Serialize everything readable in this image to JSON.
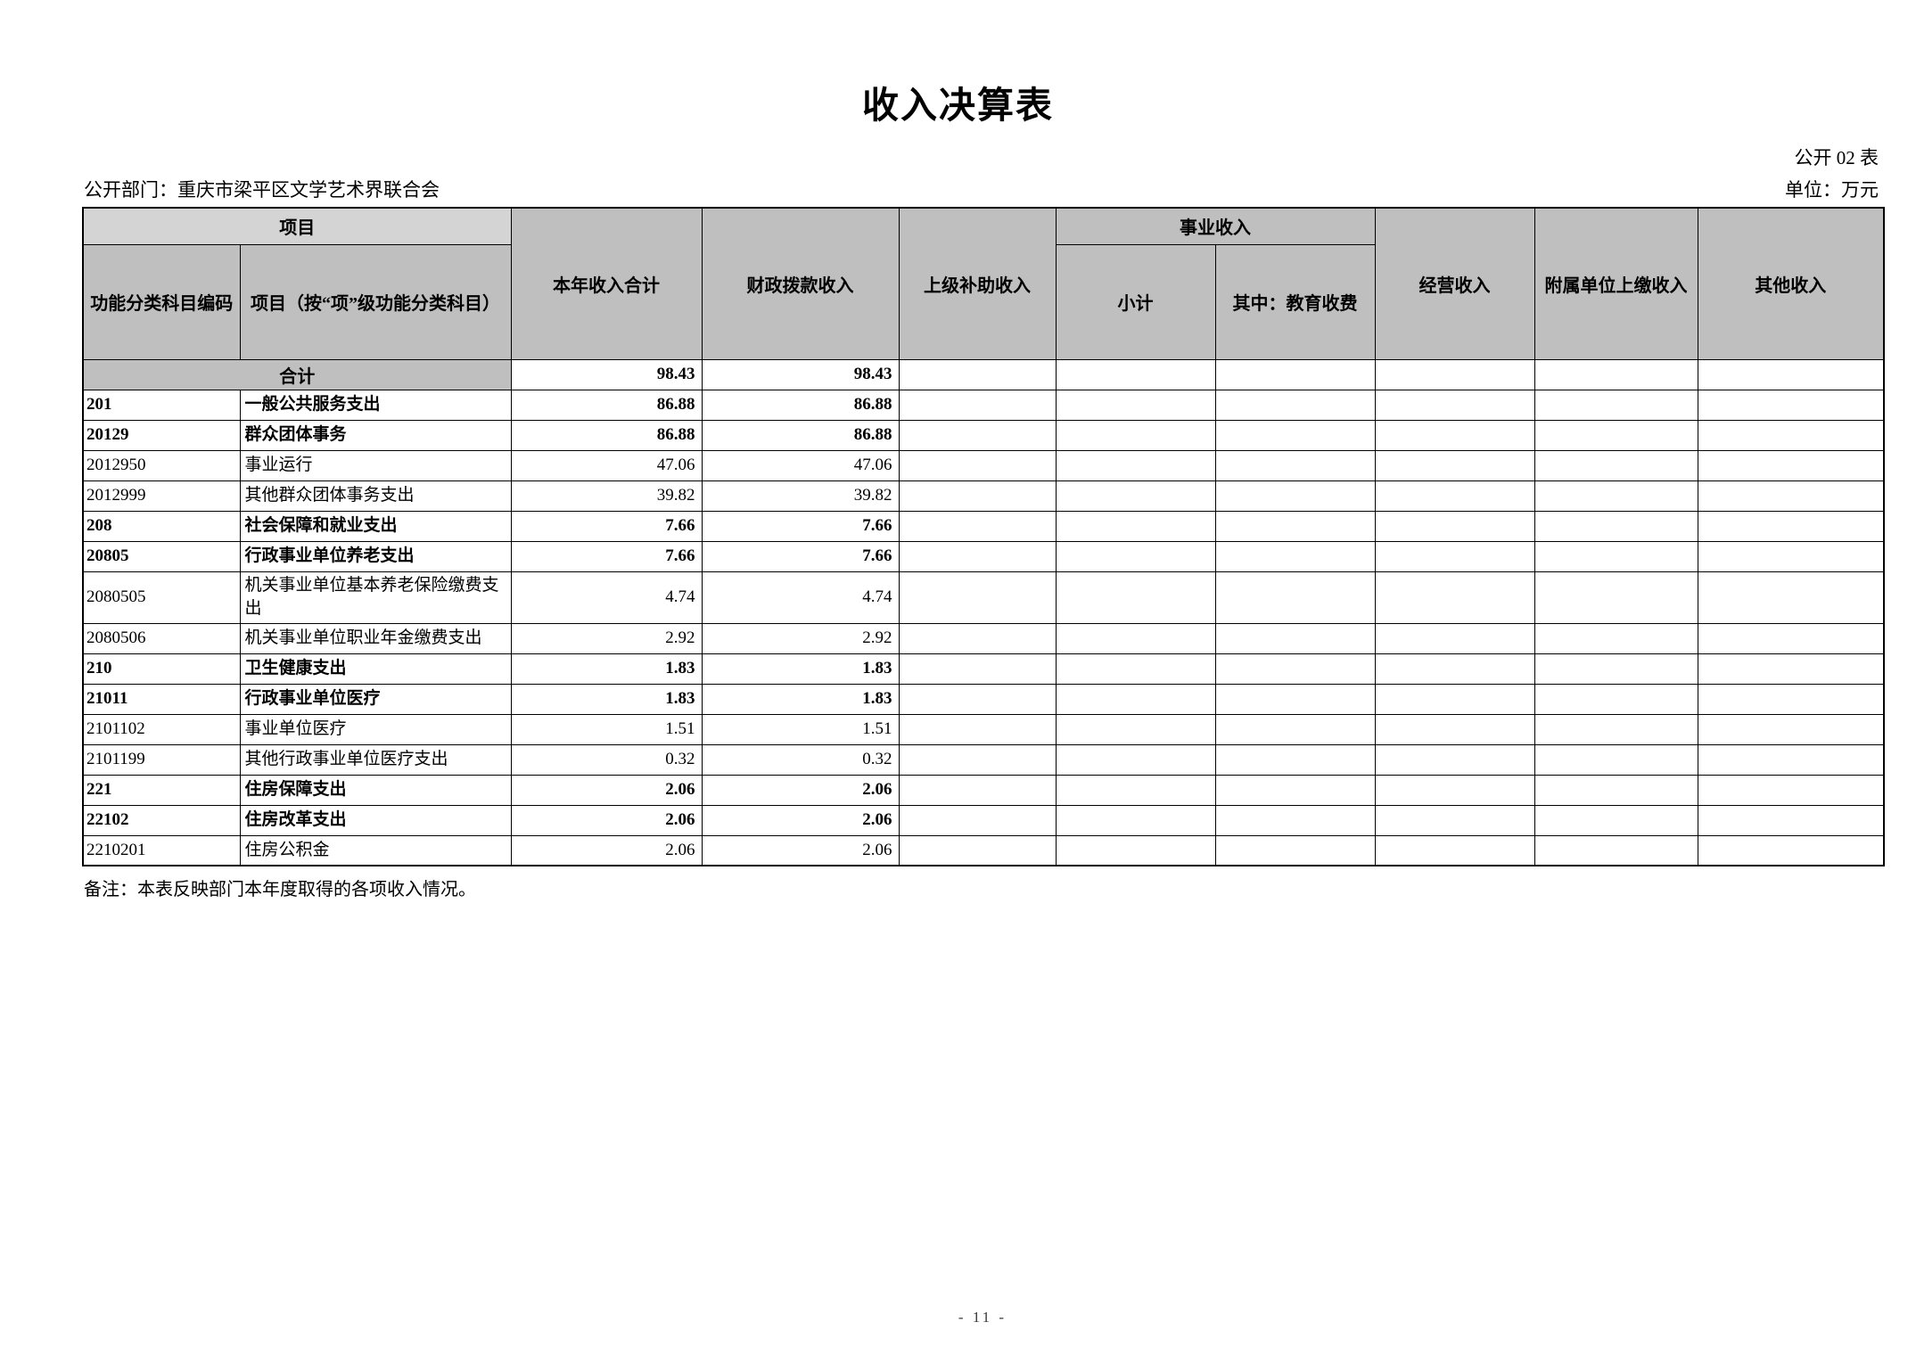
{
  "page": {
    "title": "收入决算表",
    "table_code": "公开 02 表",
    "department": "公开部门：重庆市梁平区文学艺术界联合会",
    "unit": "单位：万元",
    "note": "备注：本表反映部门本年度取得的各项收入情况。",
    "page_number": "- 11 -"
  },
  "colors": {
    "header_bg": "#bfbfbf",
    "project_group_bg": "#d4d4d4",
    "total_row_bg": "#bfbfbf",
    "border": "#000000"
  },
  "table": {
    "header": {
      "group_project": "项目",
      "col_code": "功能分类科目编码",
      "col_project": "项目（按“项”级功能分类科目）",
      "col_annual_total": "本年收入合计",
      "col_fiscal": "财政拨款收入",
      "col_superior": "上级补助收入",
      "group_business": "事业收入",
      "col_subtotal": "小计",
      "col_education": "其中：教育收费",
      "col_operating": "经营收入",
      "col_affiliated": "附属单位上缴收入",
      "col_other": "其他收入"
    },
    "total_row": {
      "label": "合计",
      "annual_total": "98.43",
      "fiscal": "98.43",
      "superior": "",
      "subtotal": "",
      "education": "",
      "operating": "",
      "affiliated": "",
      "other": ""
    },
    "rows": [
      {
        "code": "201",
        "name": "一般公共服务支出",
        "annual_total": "86.88",
        "fiscal": "86.88",
        "superior": "",
        "subtotal": "",
        "education": "",
        "operating": "",
        "affiliated": "",
        "other": "",
        "bold": true
      },
      {
        "code": "20129",
        "name": "群众团体事务",
        "annual_total": "86.88",
        "fiscal": "86.88",
        "superior": "",
        "subtotal": "",
        "education": "",
        "operating": "",
        "affiliated": "",
        "other": "",
        "bold": true
      },
      {
        "code": "2012950",
        "name": "事业运行",
        "annual_total": "47.06",
        "fiscal": "47.06",
        "superior": "",
        "subtotal": "",
        "education": "",
        "operating": "",
        "affiliated": "",
        "other": "",
        "bold": false
      },
      {
        "code": "2012999",
        "name": "其他群众团体事务支出",
        "annual_total": "39.82",
        "fiscal": "39.82",
        "superior": "",
        "subtotal": "",
        "education": "",
        "operating": "",
        "affiliated": "",
        "other": "",
        "bold": false
      },
      {
        "code": "208",
        "name": "社会保障和就业支出",
        "annual_total": "7.66",
        "fiscal": "7.66",
        "superior": "",
        "subtotal": "",
        "education": "",
        "operating": "",
        "affiliated": "",
        "other": "",
        "bold": true
      },
      {
        "code": "20805",
        "name": "行政事业单位养老支出",
        "annual_total": "7.66",
        "fiscal": "7.66",
        "superior": "",
        "subtotal": "",
        "education": "",
        "operating": "",
        "affiliated": "",
        "other": "",
        "bold": true
      },
      {
        "code": "2080505",
        "name": "机关事业单位基本养老保险缴费支出",
        "annual_total": "4.74",
        "fiscal": "4.74",
        "superior": "",
        "subtotal": "",
        "education": "",
        "operating": "",
        "affiliated": "",
        "other": "",
        "bold": false
      },
      {
        "code": "2080506",
        "name": "机关事业单位职业年金缴费支出",
        "annual_total": "2.92",
        "fiscal": "2.92",
        "superior": "",
        "subtotal": "",
        "education": "",
        "operating": "",
        "affiliated": "",
        "other": "",
        "bold": false
      },
      {
        "code": "210",
        "name": "卫生健康支出",
        "annual_total": "1.83",
        "fiscal": "1.83",
        "superior": "",
        "subtotal": "",
        "education": "",
        "operating": "",
        "affiliated": "",
        "other": "",
        "bold": true
      },
      {
        "code": "21011",
        "name": "行政事业单位医疗",
        "annual_total": "1.83",
        "fiscal": "1.83",
        "superior": "",
        "subtotal": "",
        "education": "",
        "operating": "",
        "affiliated": "",
        "other": "",
        "bold": true
      },
      {
        "code": "2101102",
        "name": "事业单位医疗",
        "annual_total": "1.51",
        "fiscal": "1.51",
        "superior": "",
        "subtotal": "",
        "education": "",
        "operating": "",
        "affiliated": "",
        "other": "",
        "bold": false
      },
      {
        "code": "2101199",
        "name": "其他行政事业单位医疗支出",
        "annual_total": "0.32",
        "fiscal": "0.32",
        "superior": "",
        "subtotal": "",
        "education": "",
        "operating": "",
        "affiliated": "",
        "other": "",
        "bold": false
      },
      {
        "code": "221",
        "name": "住房保障支出",
        "annual_total": "2.06",
        "fiscal": "2.06",
        "superior": "",
        "subtotal": "",
        "education": "",
        "operating": "",
        "affiliated": "",
        "other": "",
        "bold": true
      },
      {
        "code": "22102",
        "name": "住房改革支出",
        "annual_total": "2.06",
        "fiscal": "2.06",
        "superior": "",
        "subtotal": "",
        "education": "",
        "operating": "",
        "affiliated": "",
        "other": "",
        "bold": true
      },
      {
        "code": "2210201",
        "name": "住房公积金",
        "annual_total": "2.06",
        "fiscal": "2.06",
        "superior": "",
        "subtotal": "",
        "education": "",
        "operating": "",
        "affiliated": "",
        "other": "",
        "bold": false
      }
    ]
  }
}
